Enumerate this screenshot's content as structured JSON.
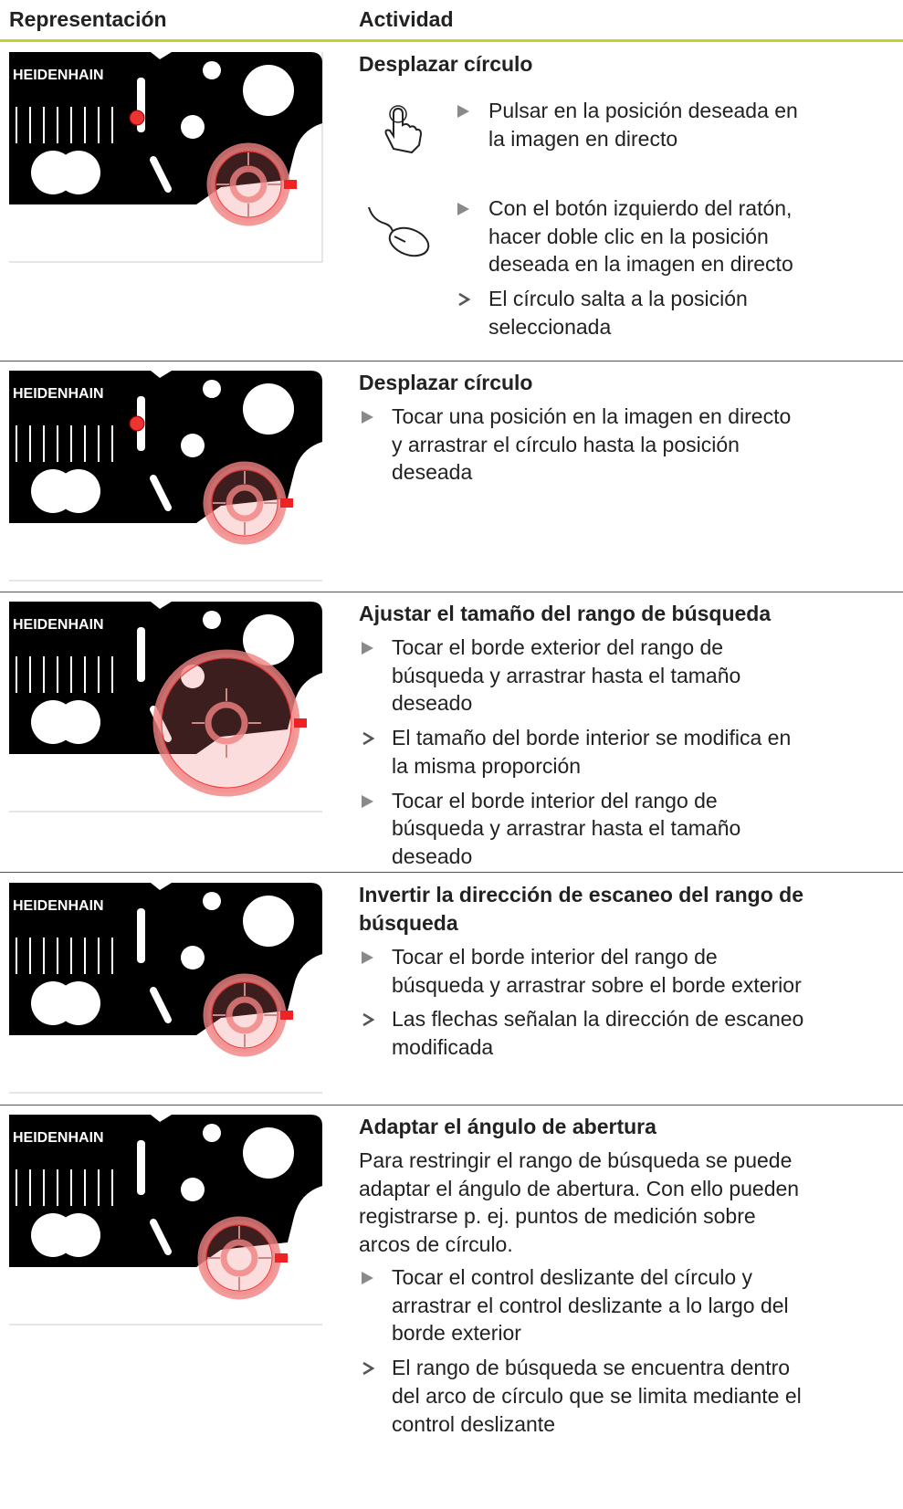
{
  "header": {
    "col1": "Representación",
    "col2": "Actividad"
  },
  "rows": [
    {
      "logo": "HEIDENHAIN",
      "title": [
        "Desplazar círculo"
      ],
      "paragraph": [],
      "items": [
        {
          "kind": "step",
          "icon": "touch",
          "lines": [
            "Pulsar en la posición deseada en",
            "la imagen en directo"
          ]
        },
        {
          "kind": "step",
          "icon": "mouse",
          "lines": [
            "Con el botón izquierdo del ratón,",
            "hacer doble clic en la posición",
            "deseada en la imagen en directo"
          ]
        },
        {
          "kind": "result",
          "icon": "none",
          "lines": [
            "El círculo salta a la posición",
            "seleccionada"
          ]
        }
      ]
    },
    {
      "logo": "HEIDENHAIN",
      "title": [
        "Desplazar círculo"
      ],
      "paragraph": [],
      "items": [
        {
          "kind": "step",
          "lines": [
            "Tocar una posición en la imagen en directo",
            "y arrastrar el círculo hasta la posición",
            "deseada"
          ]
        }
      ]
    },
    {
      "logo": "HEIDENHAIN",
      "title": [
        "Ajustar el tamaño del rango de búsqueda"
      ],
      "paragraph": [],
      "items": [
        {
          "kind": "step",
          "lines": [
            "Tocar el borde exterior del rango de",
            "búsqueda y arrastrar hasta el tamaño",
            "deseado"
          ]
        },
        {
          "kind": "result",
          "lines": [
            "El tamaño del borde interior se modifica en",
            "la misma proporción"
          ]
        },
        {
          "kind": "step",
          "lines": [
            "Tocar el borde interior del rango de",
            "búsqueda y arrastrar hasta el tamaño",
            "deseado"
          ]
        }
      ]
    },
    {
      "logo": "HEIDENHAIN",
      "title": [
        "Invertir la dirección de escaneo del rango de",
        "búsqueda"
      ],
      "paragraph": [],
      "items": [
        {
          "kind": "step",
          "lines": [
            "Tocar el borde interior del rango de",
            "búsqueda y arrastrar sobre el borde exterior"
          ]
        },
        {
          "kind": "result",
          "lines": [
            "Las flechas señalan la dirección de escaneo",
            "modificada"
          ]
        }
      ]
    },
    {
      "logo": "HEIDENHAIN",
      "title": [
        "Adaptar el ángulo de abertura"
      ],
      "paragraph": [
        "Para restringir el rango de búsqueda se puede",
        "adaptar el ángulo de abertura. Con ello pueden",
        "registrarse p. ej. puntos de medición sobre",
        "arcos de círculo."
      ],
      "items": [
        {
          "kind": "step",
          "lines": [
            "Tocar el control deslizante del círculo y",
            "arrastrar el control deslizante a lo largo del",
            "borde exterior"
          ]
        },
        {
          "kind": "result",
          "lines": [
            "El rango de búsqueda se encuentra dentro",
            "del arco de círculo que se limita mediante el",
            "control deslizante"
          ]
        }
      ]
    }
  ]
}
